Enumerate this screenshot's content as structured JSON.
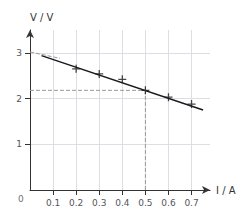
{
  "chart_data": {
    "type": "scatter",
    "xlabel": "I / A",
    "ylabel": "V / V",
    "annotations": [
      "0"
    ],
    "xlim": [
      0,
      0.78
    ],
    "ylim": [
      0,
      3.5
    ],
    "xticks": [
      0.1,
      0.2,
      0.3,
      0.4,
      0.5,
      0.6,
      0.7
    ],
    "yticks": [
      1,
      2,
      3
    ],
    "grid": true,
    "series": [
      {
        "type": "scatter",
        "marker": "plus",
        "color": "#1a1a1a",
        "x": [
          0.2,
          0.3,
          0.4,
          0.5,
          0.6,
          0.7
        ],
        "values": [
          2.65,
          2.54,
          2.42,
          2.18,
          2.03,
          1.88
        ]
      },
      {
        "type": "line",
        "line_style": "solid",
        "color": "#1a1a1a",
        "x": [
          0.05,
          0.75
        ],
        "values": [
          2.94,
          1.75
        ]
      },
      {
        "type": "line",
        "line_style": "dashed",
        "color": "#999999",
        "x": [
          0.0,
          0.13
        ],
        "values": [
          3.02,
          2.88
        ]
      },
      {
        "type": "line",
        "line_style": "dashed",
        "color": "#999999",
        "x": [
          0.0,
          0.5
        ],
        "values": [
          2.18,
          2.18
        ]
      },
      {
        "type": "line",
        "line_style": "dashed",
        "color": "#999999",
        "x": [
          0.5,
          0.5
        ],
        "values": [
          0.0,
          2.18
        ]
      }
    ]
  }
}
